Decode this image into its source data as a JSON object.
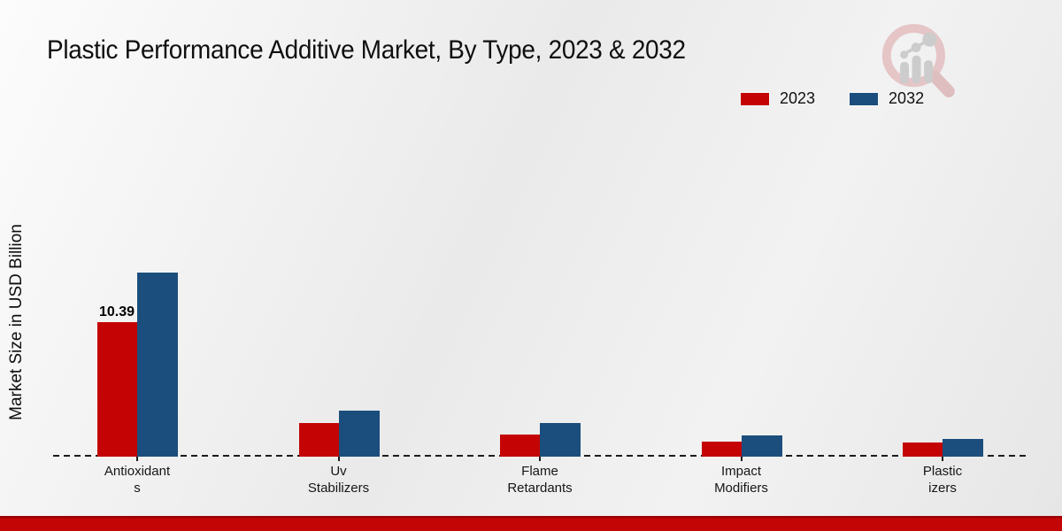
{
  "title": "Plastic Performance Additive Market, By Type, 2023 & 2032",
  "ylabel": "Market Size in USD Billion",
  "legend": [
    {
      "label": "2023",
      "color": "#c40404"
    },
    {
      "label": "2032",
      "color": "#1b4e7c"
    }
  ],
  "colors": {
    "series_2023": "#c40404",
    "series_2032": "#1b4e7c",
    "footer_stripe": "#c30505",
    "baseline": "#1c1c1c"
  },
  "watermark_icon": "magnifier-bar-chart-logo",
  "chart_data": {
    "type": "bar",
    "title": "Plastic Performance Additive Market, By Type, 2023 & 2032",
    "xlabel": "",
    "ylabel": "Market Size in USD Billion",
    "categories": [
      "Antioxidants",
      "Uv Stabilizers",
      "Flame Retardants",
      "Impact Modifiers",
      "Plasticizers"
    ],
    "category_label_lines": [
      [
        "Antioxidant",
        "s"
      ],
      [
        "Uv",
        "Stabilizers"
      ],
      [
        "Flame",
        "Retardants"
      ],
      [
        "Impact",
        "Modifiers"
      ],
      [
        "Plastic",
        "izers"
      ]
    ],
    "series": [
      {
        "name": "2023",
        "color": "#c40404",
        "values": [
          10.39,
          2.6,
          1.7,
          1.15,
          1.1
        ]
      },
      {
        "name": "2032",
        "color": "#1b4e7c",
        "values": [
          14.2,
          3.55,
          2.6,
          1.65,
          1.35
        ]
      }
    ],
    "data_labels": [
      {
        "series": "2023",
        "category": "Antioxidants",
        "text": "10.39"
      }
    ],
    "ylim": [
      0,
      15.5
    ],
    "y_axis_ticks_visible": false,
    "grid": false,
    "baseline_style": "dashed",
    "legend_position": "top-right"
  }
}
